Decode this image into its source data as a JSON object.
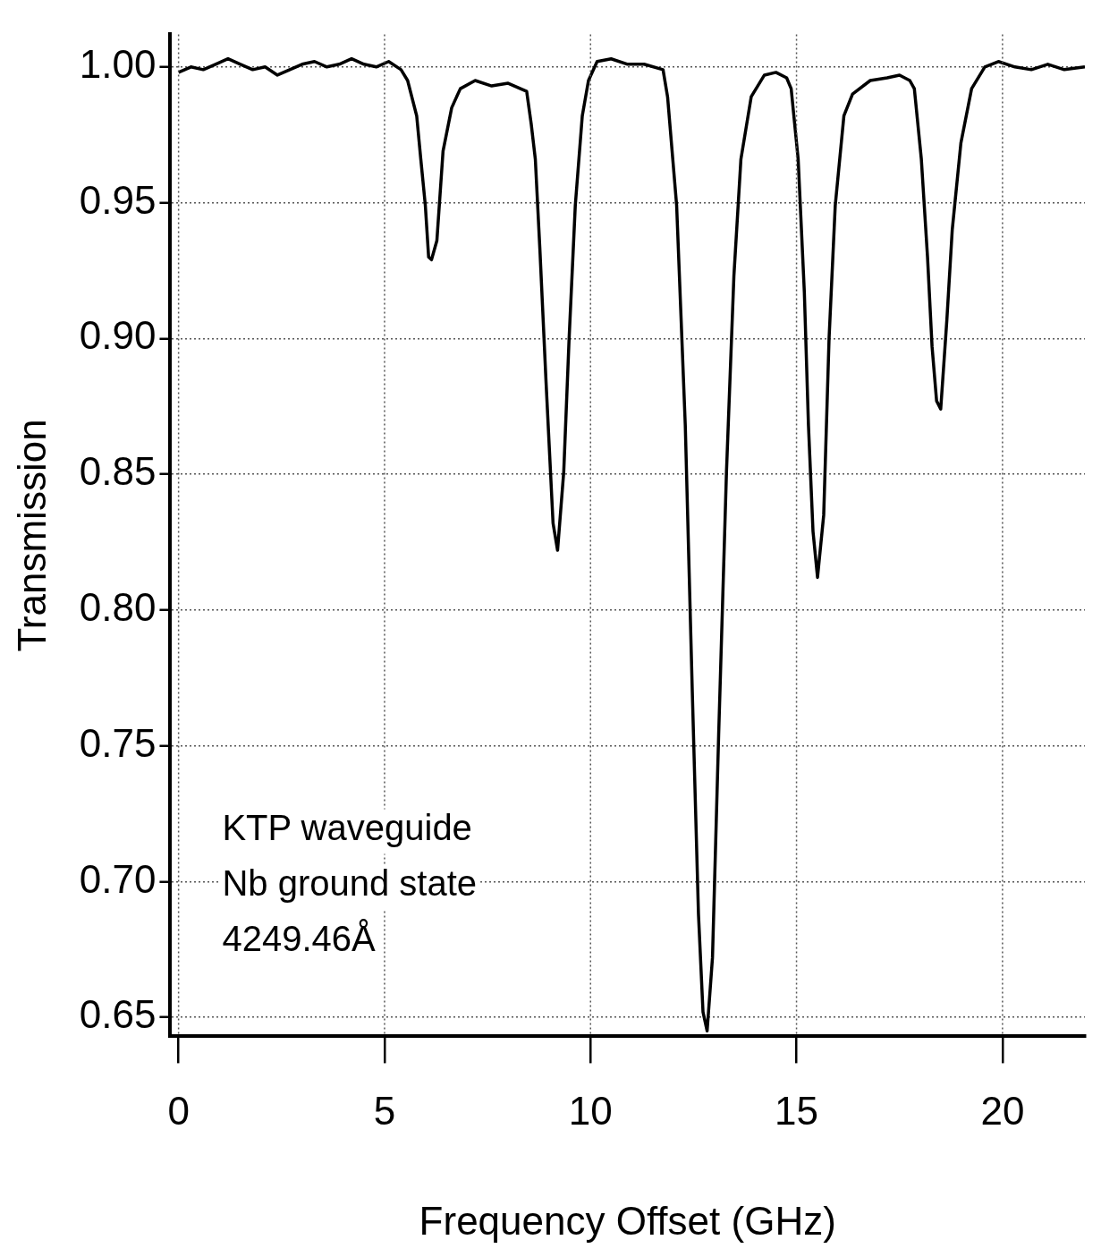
{
  "chart_data": {
    "type": "line",
    "xlabel": "Frequency Offset (GHz)",
    "ylabel": "Transmission",
    "annotations": [
      "KTP waveguide",
      "Nb ground state",
      "4249.46Å"
    ],
    "xlim": [
      -0.2,
      22
    ],
    "ylim": [
      0.643,
      1.012
    ],
    "xticks": [
      0,
      5,
      10,
      15,
      20
    ],
    "yticks": [
      {
        "value": 0.65,
        "label": "0.65"
      },
      {
        "value": 0.7,
        "label": "0.70"
      },
      {
        "value": 0.75,
        "label": "0.75"
      },
      {
        "value": 0.8,
        "label": "0.80"
      },
      {
        "value": 0.85,
        "label": "0.85"
      },
      {
        "value": 0.9,
        "label": "0.90"
      },
      {
        "value": 0.95,
        "label": "0.95"
      },
      {
        "value": 1,
        "label": "1.00"
      }
    ],
    "grid": true,
    "legend": false,
    "marker": "none",
    "line_style": "solid",
    "series": [
      {
        "color": "#000000",
        "x": [
          0,
          0.3,
          0.6,
          0.9,
          1.2,
          1.5,
          1.8,
          2.1,
          2.4,
          2.7,
          3.0,
          3.3,
          3.6,
          3.9,
          4.2,
          4.5,
          4.8,
          5.1,
          5.4,
          5.56,
          5.78,
          5.88,
          5.99,
          6.07,
          6.14,
          6.27,
          6.42,
          6.63,
          6.84,
          7.2,
          7.6,
          8.0,
          8.45,
          8.56,
          8.66,
          8.77,
          8.92,
          9.09,
          9.2,
          9.35,
          9.48,
          9.63,
          9.8,
          9.95,
          10.16,
          10.5,
          10.9,
          11.3,
          11.76,
          11.87,
          12.09,
          12.3,
          12.47,
          12.62,
          12.73,
          12.83,
          12.96,
          13.11,
          13.3,
          13.48,
          13.65,
          13.9,
          14.22,
          14.5,
          14.76,
          14.87,
          15.04,
          15.19,
          15.29,
          15.4,
          15.51,
          15.66,
          15.79,
          15.94,
          16.15,
          16.36,
          16.79,
          17.2,
          17.5,
          17.75,
          17.86,
          18.03,
          18.18,
          18.29,
          18.4,
          18.5,
          18.65,
          18.78,
          18.99,
          19.25,
          19.57,
          19.9,
          20.3,
          20.7,
          21.1,
          21.5,
          22
        ],
        "values": [
          0.998,
          1.0,
          0.999,
          1.001,
          1.003,
          1.001,
          0.999,
          1.0,
          0.997,
          0.999,
          1.001,
          1.002,
          1.0,
          1.001,
          1.003,
          1.001,
          1.0,
          1.002,
          0.999,
          0.995,
          0.982,
          0.966,
          0.949,
          0.93,
          0.929,
          0.936,
          0.969,
          0.985,
          0.992,
          0.995,
          0.993,
          0.994,
          0.991,
          0.979,
          0.966,
          0.933,
          0.884,
          0.832,
          0.822,
          0.851,
          0.9,
          0.949,
          0.982,
          0.995,
          1.002,
          1.003,
          1.001,
          1.001,
          0.999,
          0.989,
          0.949,
          0.868,
          0.77,
          0.688,
          0.652,
          0.645,
          0.672,
          0.754,
          0.851,
          0.923,
          0.966,
          0.989,
          0.997,
          0.998,
          0.996,
          0.992,
          0.966,
          0.917,
          0.868,
          0.829,
          0.812,
          0.835,
          0.9,
          0.949,
          0.982,
          0.99,
          0.995,
          0.996,
          0.997,
          0.995,
          0.992,
          0.966,
          0.93,
          0.897,
          0.877,
          0.874,
          0.907,
          0.94,
          0.972,
          0.992,
          1.0,
          1.002,
          1.0,
          0.999,
          1.001,
          0.999,
          1.0
        ]
      }
    ]
  }
}
